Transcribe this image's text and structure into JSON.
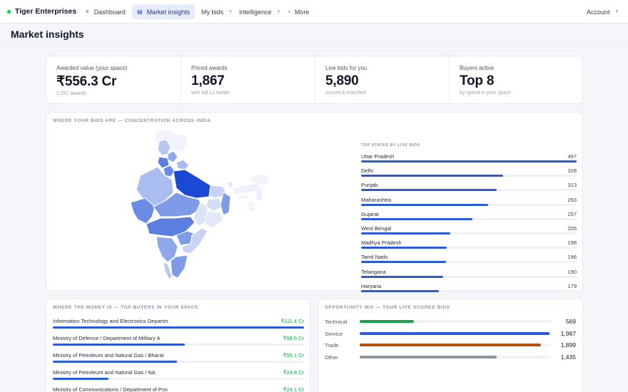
{
  "header": {
    "brand": "Tiger Enterprises",
    "nav": [
      {
        "label": "Dashboard",
        "icon": "sparkle-icon",
        "glyph": "✳",
        "caret": false,
        "active": false
      },
      {
        "label": "Market insights",
        "icon": "chart-icon",
        "glyph": "▤",
        "caret": false,
        "active": true
      },
      {
        "label": "My bids",
        "icon": "",
        "glyph": "",
        "caret": true,
        "active": false
      },
      {
        "label": "Intelligence",
        "icon": "",
        "glyph": "",
        "caret": true,
        "active": false
      },
      {
        "label": "More",
        "icon": "dot-icon",
        "glyph": "•",
        "caret": false,
        "active": false
      }
    ],
    "account": "Account"
  },
  "page": {
    "title": "Market insights"
  },
  "kpis": [
    {
      "label": "Awarded value (your space)",
      "value": "₹556.3 Cr",
      "sub": "2,261 awards"
    },
    {
      "label": "Priced awards",
      "value": "1,867",
      "sub": "with full L1 ladder"
    },
    {
      "label": "Live bids for you",
      "value": "5,890",
      "sub": "scored & matched"
    },
    {
      "label": "Buyers active",
      "value": "Top 8",
      "sub": "by spend in your space"
    }
  ],
  "map_section": {
    "title": "WHERE YOUR BIDS ARE — CONCENTRATION ACROSS INDIA",
    "states_title": "TOP STATES BY LIVE BIDS",
    "max": 497,
    "states": [
      {
        "name": "Uttar Pradesh",
        "value": 497
      },
      {
        "name": "Delhi",
        "value": 328
      },
      {
        "name": "Punjab",
        "value": 313
      },
      {
        "name": "Maharashtra",
        "value": 293
      },
      {
        "name": "Gujarat",
        "value": 257
      },
      {
        "name": "West Bengal",
        "value": 205
      },
      {
        "name": "Madhya Pradesh",
        "value": 198
      },
      {
        "name": "Tamil Nadu",
        "value": 196
      },
      {
        "name": "Telangana",
        "value": 190
      },
      {
        "name": "Haryana",
        "value": 179
      }
    ]
  },
  "buyers_section": {
    "title": "WHERE THE MONEY IS — TOP BUYERS IN YOUR SPACE",
    "max": 111.4,
    "buyers": [
      {
        "name": "Information Technology and Electronics Departm",
        "value": "₹111.4 Cr",
        "amount": 111.4
      },
      {
        "name": "Ministry of Defence / Department of Military A",
        "value": "₹58.5 Cr",
        "amount": 58.5
      },
      {
        "name": "Ministry of Petroleum and Natural Gas / Bharat",
        "value": "₹55.1 Cr",
        "amount": 55.1
      },
      {
        "name": "Ministry of Petroleum and Natural Gas / NA",
        "value": "₹24.8 Cr",
        "amount": 24.8
      },
      {
        "name": "Ministry of Communications / Department of Pos",
        "value": "₹24.1 Cr",
        "amount": 24.1
      }
    ]
  },
  "mix_section": {
    "title": "OPPORTUNITY MIX — YOUR LIVE SCORED BIDS",
    "max": 2000,
    "items": [
      {
        "label": "Technical",
        "value": "569",
        "count": 569,
        "color": "#16a34a"
      },
      {
        "label": "Service",
        "value": "1,987",
        "count": 1987,
        "color": "#2a5bd7"
      },
      {
        "label": "Trade",
        "value": "1,899",
        "count": 1899,
        "color": "#b45309"
      },
      {
        "label": "Other",
        "value": "1,435",
        "count": 1435,
        "color": "#8b96a5"
      }
    ]
  }
}
